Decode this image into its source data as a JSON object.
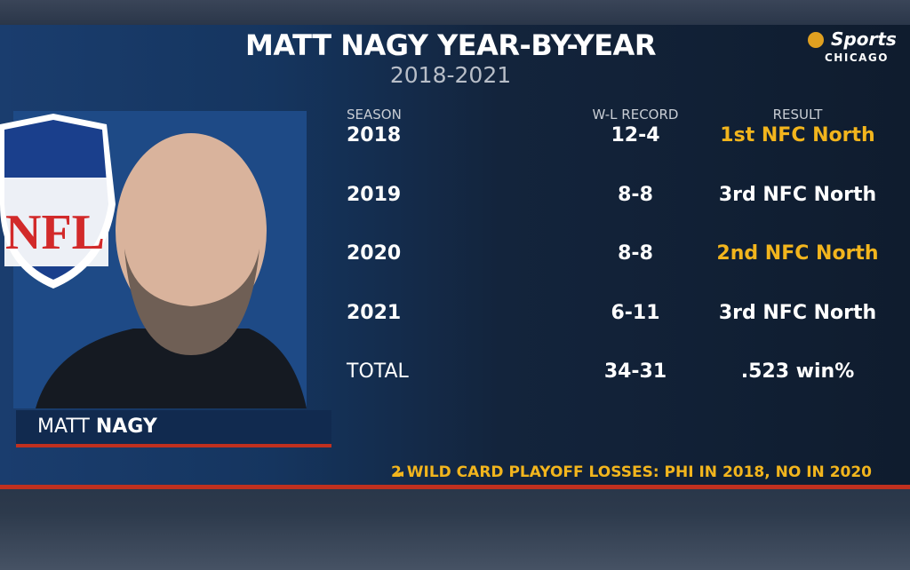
{
  "header": {
    "title": "MATT NAGY YEAR-BY-YEAR",
    "subtitle": "2018-2021"
  },
  "logo": {
    "brand": "Sports",
    "city": "CHICAGO"
  },
  "badge": "NFL",
  "table": {
    "columns": [
      "SEASON",
      "W-L RECORD",
      "RESULT"
    ],
    "rows": [
      {
        "season": "2018",
        "record": "12-4",
        "result": "1st NFC North",
        "highlight": true
      },
      {
        "season": "2019",
        "record": "8-8",
        "result": "3rd NFC North",
        "highlight": false
      },
      {
        "season": "2020",
        "record": "8-8",
        "result": "2nd NFC North",
        "highlight": true
      },
      {
        "season": "2021",
        "record": "6-11",
        "result": "3rd NFC North",
        "highlight": false
      },
      {
        "season": "TOTAL",
        "record": "34-31",
        "result": ".523 win%",
        "highlight": false
      }
    ]
  },
  "nameplate": {
    "first": "MATT",
    "last": "NAGY"
  },
  "footnote": "2 WILD CARD PLAYOFF LOSSES: PHI IN 2018, NO IN 2020"
}
